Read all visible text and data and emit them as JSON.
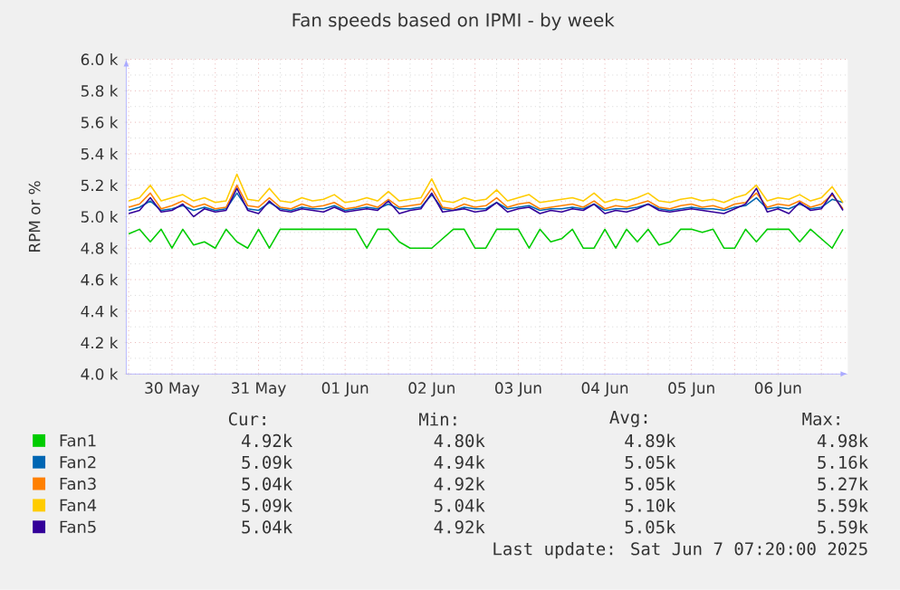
{
  "chart_data": {
    "type": "line",
    "title": "Fan speeds based on IPMI - by week",
    "ylabel": "RPM or %",
    "xlim": [
      "2025-05-29T23:20",
      "2025-06-07T07:20"
    ],
    "ylim": [
      4000,
      6000
    ],
    "yticks": [
      {
        "value": 4000,
        "label": "4.0 k"
      },
      {
        "value": 4200,
        "label": "4.2 k"
      },
      {
        "value": 4400,
        "label": "4.4 k"
      },
      {
        "value": 4600,
        "label": "4.6 k"
      },
      {
        "value": 4800,
        "label": "4.8 k"
      },
      {
        "value": 5000,
        "label": "5.0 k"
      },
      {
        "value": 5200,
        "label": "5.2 k"
      },
      {
        "value": 5400,
        "label": "5.4 k"
      },
      {
        "value": 5600,
        "label": "5.6 k"
      },
      {
        "value": 5800,
        "label": "5.8 k"
      },
      {
        "value": 6000,
        "label": "6.0 k"
      }
    ],
    "xticks": [
      {
        "value": "2025-05-30T00:00",
        "label": null
      },
      {
        "value": "2025-05-30T12:00",
        "label": "30 May"
      },
      {
        "value": "2025-05-31T00:00",
        "label": null
      },
      {
        "value": "2025-05-31T12:00",
        "label": "31 May"
      },
      {
        "value": "2025-06-01T00:00",
        "label": null
      },
      {
        "value": "2025-06-01T12:00",
        "label": "01 Jun"
      },
      {
        "value": "2025-06-02T00:00",
        "label": null
      },
      {
        "value": "2025-06-02T12:00",
        "label": "02 Jun"
      },
      {
        "value": "2025-06-03T00:00",
        "label": null
      },
      {
        "value": "2025-06-03T12:00",
        "label": "03 Jun"
      },
      {
        "value": "2025-06-04T00:00",
        "label": null
      },
      {
        "value": "2025-06-04T12:00",
        "label": "04 Jun"
      },
      {
        "value": "2025-06-05T00:00",
        "label": null
      },
      {
        "value": "2025-06-05T12:00",
        "label": "05 Jun"
      },
      {
        "value": "2025-06-06T00:00",
        "label": null
      },
      {
        "value": "2025-06-06T12:00",
        "label": "06 Jun"
      },
      {
        "value": "2025-06-07T00:00",
        "label": null
      }
    ],
    "grid": true,
    "legend": "bottom",
    "x": [
      "2025-05-30T00:00",
      "2025-05-30T03:00",
      "2025-05-30T06:00",
      "2025-05-30T09:00",
      "2025-05-30T12:00",
      "2025-05-30T15:00",
      "2025-05-30T18:00",
      "2025-05-30T21:00",
      "2025-05-31T00:00",
      "2025-05-31T03:00",
      "2025-05-31T06:00",
      "2025-05-31T09:00",
      "2025-05-31T12:00",
      "2025-05-31T15:00",
      "2025-05-31T18:00",
      "2025-05-31T21:00",
      "2025-06-01T00:00",
      "2025-06-01T03:00",
      "2025-06-01T06:00",
      "2025-06-01T09:00",
      "2025-06-01T12:00",
      "2025-06-01T15:00",
      "2025-06-01T18:00",
      "2025-06-01T21:00",
      "2025-06-02T00:00",
      "2025-06-02T03:00",
      "2025-06-02T06:00",
      "2025-06-02T09:00",
      "2025-06-02T12:00",
      "2025-06-02T15:00",
      "2025-06-02T18:00",
      "2025-06-02T21:00",
      "2025-06-03T00:00",
      "2025-06-03T03:00",
      "2025-06-03T06:00",
      "2025-06-03T09:00",
      "2025-06-03T12:00",
      "2025-06-03T15:00",
      "2025-06-03T18:00",
      "2025-06-03T21:00",
      "2025-06-04T00:00",
      "2025-06-04T03:00",
      "2025-06-04T06:00",
      "2025-06-04T09:00",
      "2025-06-04T12:00",
      "2025-06-04T15:00",
      "2025-06-04T18:00",
      "2025-06-04T21:00",
      "2025-06-05T00:00",
      "2025-06-05T03:00",
      "2025-06-05T06:00",
      "2025-06-05T09:00",
      "2025-06-05T12:00",
      "2025-06-05T15:00",
      "2025-06-05T18:00",
      "2025-06-05T21:00",
      "2025-06-06T00:00",
      "2025-06-06T03:00",
      "2025-06-06T06:00",
      "2025-06-06T09:00",
      "2025-06-06T12:00",
      "2025-06-06T15:00",
      "2025-06-06T18:00",
      "2025-06-06T21:00",
      "2025-06-07T00:00",
      "2025-06-07T03:00",
      "2025-06-07T06:00"
    ],
    "series": [
      {
        "name": "Fan1",
        "color": "#00cc00",
        "values": [
          4890,
          4920,
          4840,
          4920,
          4800,
          4920,
          4820,
          4840,
          4800,
          4920,
          4840,
          4800,
          4920,
          4800,
          4920,
          4920,
          4920,
          4920,
          4920,
          4920,
          4920,
          4920,
          4800,
          4920,
          4920,
          4840,
          4800,
          4800,
          4800,
          4860,
          4920,
          4920,
          4800,
          4800,
          4920,
          4920,
          4920,
          4800,
          4920,
          4840,
          4860,
          4920,
          4800,
          4800,
          4920,
          4800,
          4920,
          4840,
          4920,
          4820,
          4840,
          4920,
          4920,
          4900,
          4920,
          4800,
          4800,
          4920,
          4840,
          4920,
          4920,
          4920,
          4840,
          4920,
          4860,
          4800,
          4920
        ]
      },
      {
        "name": "Fan2",
        "color": "#0066b3",
        "values": [
          5040,
          5060,
          5100,
          5040,
          5050,
          5070,
          5040,
          5060,
          5040,
          5050,
          5150,
          5050,
          5040,
          5090,
          5050,
          5040,
          5060,
          5050,
          5050,
          5070,
          5040,
          5050,
          5060,
          5050,
          5080,
          5050,
          5050,
          5060,
          5140,
          5050,
          5040,
          5060,
          5050,
          5050,
          5090,
          5050,
          5060,
          5070,
          5040,
          5050,
          5050,
          5060,
          5050,
          5080,
          5040,
          5050,
          5050,
          5060,
          5080,
          5050,
          5040,
          5050,
          5060,
          5050,
          5050,
          5040,
          5060,
          5070,
          5120,
          5050,
          5060,
          5050,
          5080,
          5050,
          5060,
          5110,
          5090
        ]
      },
      {
        "name": "Fan3",
        "color": "#ff8000",
        "values": [
          5060,
          5080,
          5150,
          5050,
          5070,
          5100,
          5060,
          5080,
          5050,
          5060,
          5200,
          5070,
          5060,
          5120,
          5060,
          5050,
          5080,
          5060,
          5070,
          5090,
          5050,
          5060,
          5080,
          5060,
          5110,
          5060,
          5070,
          5080,
          5180,
          5060,
          5050,
          5080,
          5060,
          5070,
          5120,
          5060,
          5080,
          5090,
          5050,
          5060,
          5070,
          5080,
          5060,
          5100,
          5050,
          5070,
          5060,
          5080,
          5100,
          5060,
          5050,
          5070,
          5080,
          5060,
          5070,
          5050,
          5080,
          5090,
          5150,
          5060,
          5080,
          5070,
          5100,
          5060,
          5080,
          5140,
          5050
        ]
      },
      {
        "name": "Fan4",
        "color": "#ffcc00",
        "values": [
          5100,
          5120,
          5200,
          5100,
          5120,
          5140,
          5100,
          5120,
          5090,
          5100,
          5270,
          5110,
          5100,
          5180,
          5100,
          5090,
          5120,
          5100,
          5110,
          5140,
          5090,
          5100,
          5120,
          5100,
          5160,
          5100,
          5110,
          5120,
          5240,
          5100,
          5090,
          5120,
          5100,
          5110,
          5170,
          5100,
          5120,
          5140,
          5090,
          5100,
          5110,
          5120,
          5100,
          5150,
          5090,
          5110,
          5100,
          5120,
          5150,
          5100,
          5090,
          5110,
          5120,
          5100,
          5110,
          5090,
          5120,
          5140,
          5200,
          5100,
          5120,
          5110,
          5140,
          5100,
          5120,
          5190,
          5090
        ]
      },
      {
        "name": "Fan5",
        "color": "#330099",
        "values": [
          5020,
          5040,
          5120,
          5030,
          5040,
          5080,
          5000,
          5050,
          5030,
          5040,
          5180,
          5040,
          5020,
          5100,
          5040,
          5030,
          5050,
          5040,
          5030,
          5060,
          5030,
          5040,
          5050,
          5040,
          5100,
          5020,
          5040,
          5050,
          5150,
          5030,
          5040,
          5050,
          5030,
          5040,
          5090,
          5030,
          5050,
          5060,
          5020,
          5040,
          5030,
          5050,
          5040,
          5080,
          5020,
          5040,
          5030,
          5050,
          5080,
          5040,
          5030,
          5040,
          5050,
          5040,
          5030,
          5020,
          5050,
          5080,
          5180,
          5030,
          5050,
          5020,
          5090,
          5040,
          5050,
          5150,
          5040
        ]
      }
    ],
    "annotations": [
      "Cur:",
      "Min:",
      "Avg:",
      "Max:",
      "4.92k",
      "4.80k",
      "4.89k",
      "4.98k",
      "5.09k",
      "4.94k",
      "5.05k",
      "5.16k",
      "5.04k",
      "4.92k",
      "5.05k",
      "5.27k",
      "5.09k",
      "5.04k",
      "5.10k",
      "5.59k",
      "5.04k",
      "4.92k",
      "5.05k",
      "5.59k",
      "Last update: Sat Jun 7 07:20:00 2025"
    ]
  }
}
